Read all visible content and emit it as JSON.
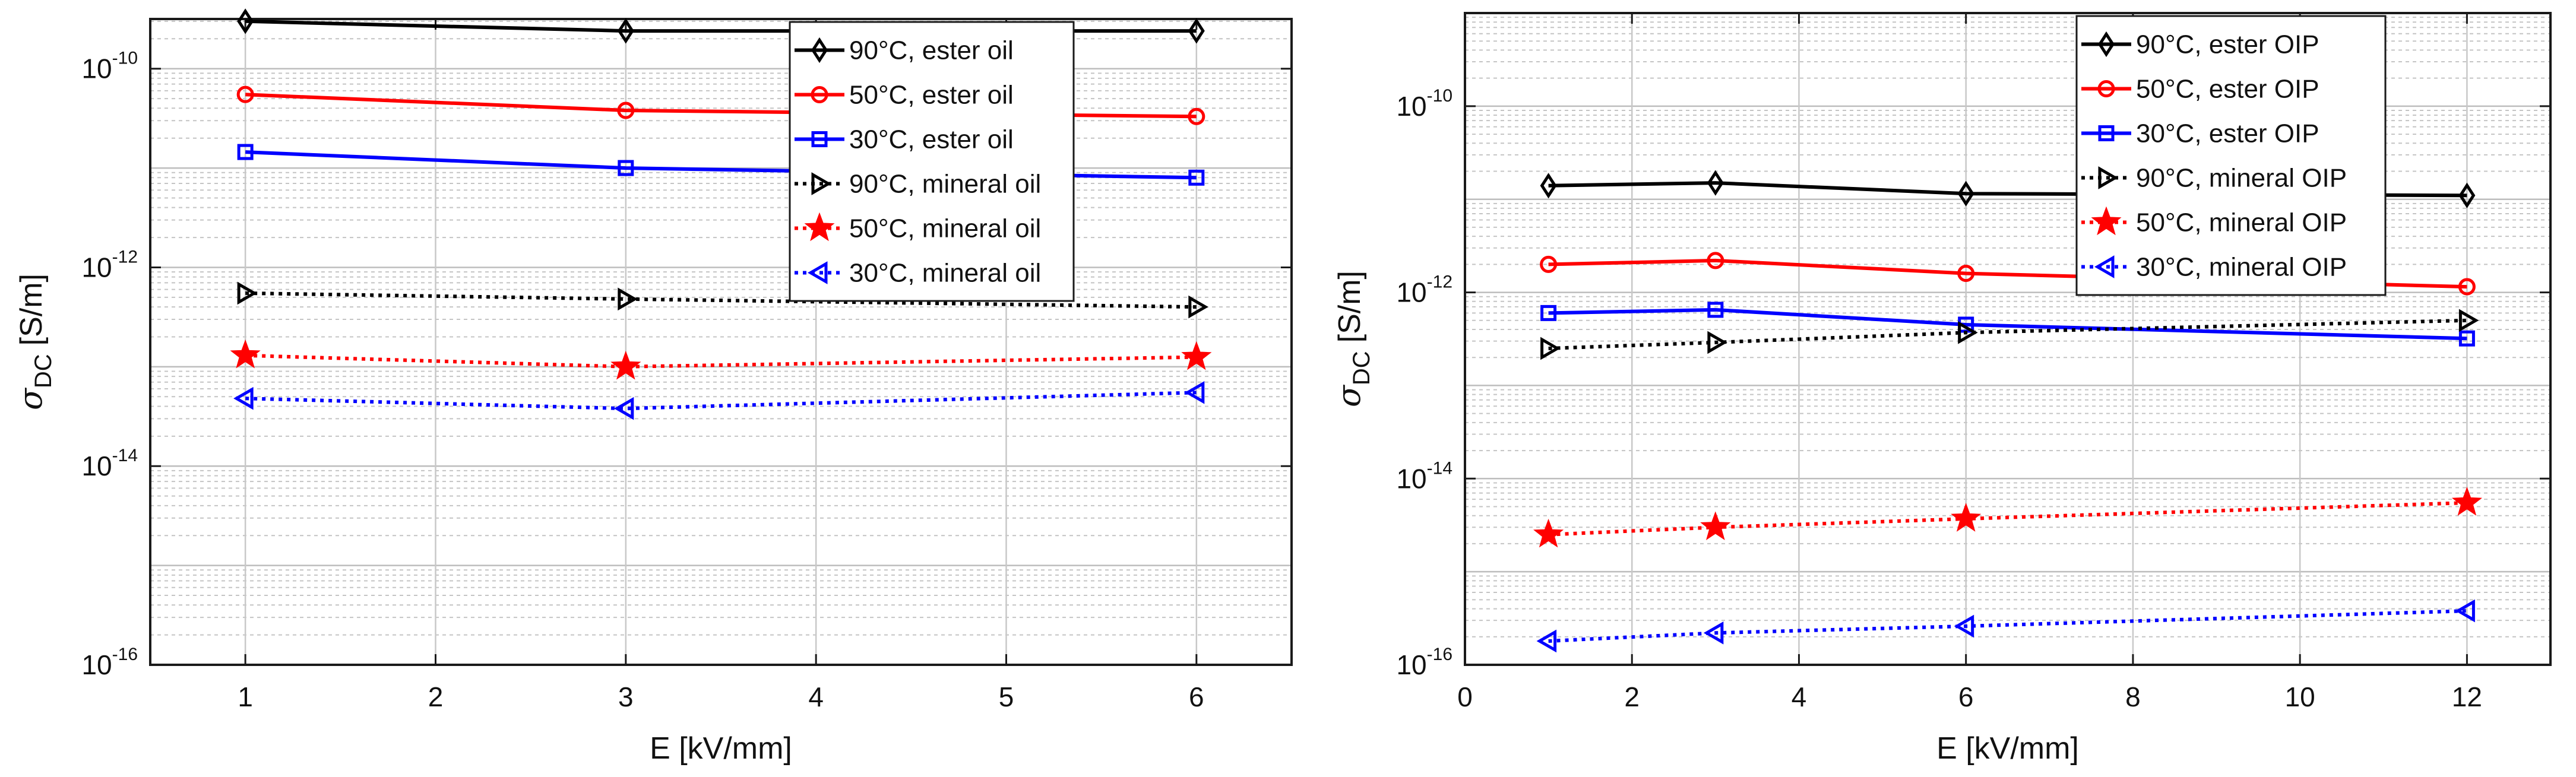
{
  "chart_data": [
    {
      "type": "line",
      "yscale": "log",
      "xlabel": "E [kV/mm]",
      "ylabel": {
        "symbol": "σ",
        "subscript": "DC",
        "unit": "[S/m]"
      },
      "xlim": [
        0.5,
        6.5
      ],
      "ylim_exp": [
        -16,
        -9.5
      ],
      "xticks": [
        1,
        2,
        3,
        4,
        5,
        6
      ],
      "yticks_exp": [
        -16,
        -14,
        -12,
        -10
      ],
      "grid": true,
      "legend_position": "top-right",
      "series": [
        {
          "name": "90°C, ester oil",
          "color": "#000000",
          "linestyle": "solid",
          "marker": "diamond",
          "x": [
            1,
            3,
            6
          ],
          "y": [
            3e-10,
            2.4e-10,
            2.4e-10
          ]
        },
        {
          "name": "50°C, ester oil",
          "color": "#ff0000",
          "linestyle": "solid",
          "marker": "circle",
          "x": [
            1,
            3,
            6
          ],
          "y": [
            5.5e-11,
            3.8e-11,
            3.3e-11
          ]
        },
        {
          "name": "30°C, ester oil",
          "color": "#0000ff",
          "linestyle": "solid",
          "marker": "square",
          "x": [
            1,
            3,
            6
          ],
          "y": [
            1.45e-11,
            1e-11,
            8e-12
          ]
        },
        {
          "name": "90°C, mineral oil",
          "color": "#000000",
          "linestyle": "dotted",
          "marker": "triangle-right",
          "x": [
            1,
            3,
            6
          ],
          "y": [
            5.5e-13,
            4.8e-13,
            4e-13
          ]
        },
        {
          "name": "50°C, mineral oil",
          "color": "#ff0000",
          "linestyle": "dotted",
          "marker": "star",
          "x": [
            1,
            3,
            6
          ],
          "y": [
            1.3e-13,
            1e-13,
            1.25e-13
          ]
        },
        {
          "name": "30°C, mineral oil",
          "color": "#0000ff",
          "linestyle": "dotted",
          "marker": "triangle-left",
          "x": [
            1,
            3,
            6
          ],
          "y": [
            4.8e-14,
            3.8e-14,
            5.5e-14
          ]
        }
      ]
    },
    {
      "type": "line",
      "yscale": "log",
      "xlabel": "E [kV/mm]",
      "ylabel": {
        "symbol": "σ",
        "subscript": "DC",
        "unit": "[S/m]"
      },
      "xlim": [
        0,
        13
      ],
      "ylim_exp": [
        -16,
        -9
      ],
      "xticks": [
        0,
        2,
        4,
        6,
        8,
        10,
        12
      ],
      "yticks_exp": [
        -16,
        -14,
        -12,
        -10
      ],
      "grid": true,
      "legend_position": "top-right",
      "series": [
        {
          "name": "90°C, ester OIP",
          "color": "#000000",
          "linestyle": "solid",
          "marker": "diamond",
          "x": [
            1,
            3,
            6,
            12
          ],
          "y": [
            1.4e-11,
            1.5e-11,
            1.15e-11,
            1.1e-11
          ]
        },
        {
          "name": "50°C, ester OIP",
          "color": "#ff0000",
          "linestyle": "solid",
          "marker": "circle",
          "x": [
            1,
            3,
            6,
            12
          ],
          "y": [
            2e-12,
            2.2e-12,
            1.6e-12,
            1.15e-12
          ]
        },
        {
          "name": "30°C, ester OIP",
          "color": "#0000ff",
          "linestyle": "solid",
          "marker": "square",
          "x": [
            1,
            3,
            6,
            12
          ],
          "y": [
            6e-13,
            6.5e-13,
            4.5e-13,
            3.2e-13
          ]
        },
        {
          "name": "90°C, mineral OIP",
          "color": "#000000",
          "linestyle": "dotted",
          "marker": "triangle-right",
          "x": [
            1,
            3,
            6,
            12
          ],
          "y": [
            2.5e-13,
            2.9e-13,
            3.7e-13,
            5e-13
          ]
        },
        {
          "name": "50°C, mineral OIP",
          "color": "#ff0000",
          "linestyle": "dotted",
          "marker": "star",
          "x": [
            1,
            3,
            6,
            12
          ],
          "y": [
            2.5e-15,
            3e-15,
            3.7e-15,
            5.5e-15
          ]
        },
        {
          "name": "30°C, mineral OIP",
          "color": "#0000ff",
          "linestyle": "dotted",
          "marker": "triangle-left",
          "x": [
            1,
            3,
            6,
            12
          ],
          "y": [
            1.8e-16,
            2.2e-16,
            2.6e-16,
            3.8e-16
          ]
        }
      ]
    }
  ]
}
